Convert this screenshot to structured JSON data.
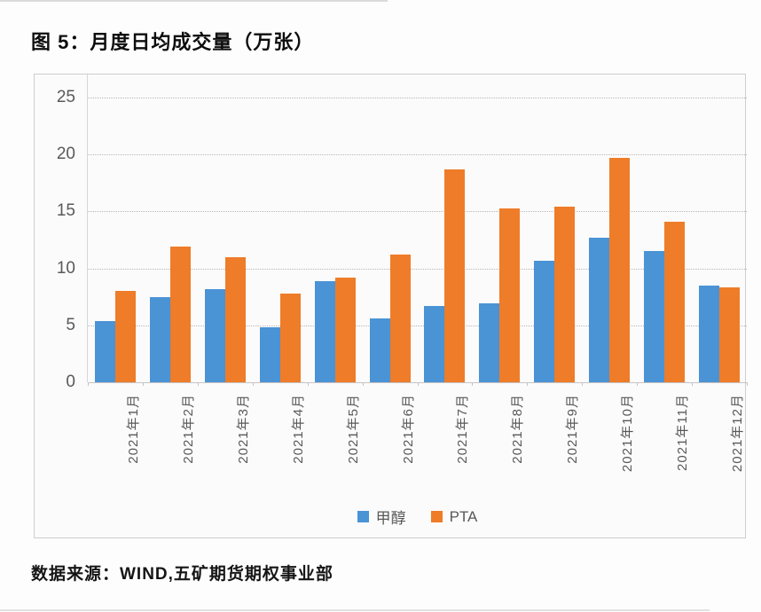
{
  "figure": {
    "title": "图 5：月度日均成交量（万张）",
    "source": "数据来源：WIND,五矿期货期权事业部"
  },
  "legend": {
    "items": [
      {
        "label": "甲醇",
        "color": "#4A93D5"
      },
      {
        "label": "PTA",
        "color": "#EE7C29"
      }
    ]
  },
  "chart_data": {
    "type": "bar",
    "title": "图 5：月度日均成交量（万张）",
    "categories": [
      "2021年1月",
      "2021年2月",
      "2021年3月",
      "2021年4月",
      "2021年5月",
      "2021年6月",
      "2021年7月",
      "2021年8月",
      "2021年9月",
      "2021年10月",
      "2021年11月",
      "2021年12月"
    ],
    "series": [
      {
        "name": "甲醇",
        "color": "#4A93D5",
        "values": [
          5.4,
          7.5,
          8.2,
          4.8,
          8.9,
          5.6,
          6.7,
          6.9,
          10.7,
          12.7,
          11.5,
          8.5
        ]
      },
      {
        "name": "PTA",
        "color": "#EE7C29",
        "values": [
          8.0,
          11.9,
          11.0,
          7.8,
          9.2,
          11.2,
          18.7,
          15.3,
          15.4,
          19.7,
          14.1,
          8.3
        ]
      }
    ],
    "xlabel": "",
    "ylabel": "",
    "ylim": [
      0,
      25
    ],
    "yticks": [
      0,
      5,
      10,
      15,
      20,
      25
    ],
    "grid": "horizontal-dotted",
    "legend_position": "bottom",
    "x_tick_rotation": -90
  }
}
